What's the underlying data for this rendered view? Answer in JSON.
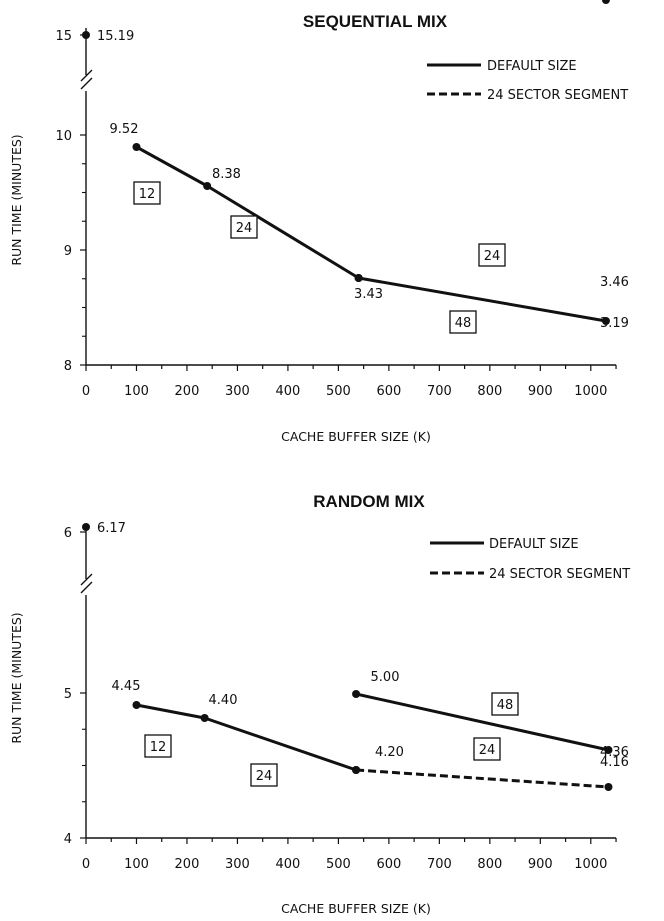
{
  "chart_data": [
    {
      "type": "line",
      "title": "SEQUENTIAL MIX",
      "xlabel": "CACHE BUFFER SIZE (K)",
      "ylabel": "RUN TIME (MINUTES)",
      "xlim": [
        0,
        1050
      ],
      "x_ticks": [
        "0",
        "100",
        "200",
        "300",
        "400",
        "500",
        "600",
        "700",
        "800",
        "900",
        "1000"
      ],
      "y_ticks": [
        "8",
        "9",
        "10",
        "15"
      ],
      "y_axis_break": true,
      "legend": {
        "position": "top-right",
        "entries": [
          "DEFAULT SIZE",
          "24 SECTOR SEGMENT"
        ]
      },
      "series": [
        {
          "name": "DEFAULT SIZE",
          "style": "solid",
          "points": [
            {
              "x": 0,
              "y": 15.19,
              "label": "15.19"
            },
            {
              "x": 100,
              "y": 9.52,
              "label": "9.52"
            },
            {
              "x": 240,
              "y": 8.38,
              "label": "8.38"
            },
            {
              "x": 540,
              "y": 3.43,
              "label": "3.43"
            },
            {
              "x": 1030,
              "y": 3.19,
              "label": "3.19"
            }
          ]
        },
        {
          "name": "24 SECTOR SEGMENT",
          "style": "dashed",
          "points": [
            {
              "x": 540,
              "y": 3.43
            },
            {
              "x": 1030,
              "y": 3.46,
              "label": "3.46"
            }
          ]
        }
      ],
      "annotations": [
        "12",
        "24",
        "24",
        "48"
      ]
    },
    {
      "type": "line",
      "title": "RANDOM MIX",
      "xlabel": "CACHE BUFFER SIZE (K)",
      "ylabel": "RUN TIME (MINUTES)",
      "xlim": [
        0,
        1050
      ],
      "x_ticks": [
        "0",
        "100",
        "200",
        "300",
        "400",
        "500",
        "600",
        "700",
        "800",
        "900",
        "1000"
      ],
      "y_ticks": [
        "4",
        "5",
        "6"
      ],
      "y_axis_break": true,
      "legend": {
        "position": "top-right",
        "entries": [
          "DEFAULT SIZE",
          "24 SECTOR SEGMENT"
        ]
      },
      "series": [
        {
          "name": "DEFAULT SIZE",
          "style": "solid",
          "points": [
            {
              "x": 0,
              "y": 6.17,
              "label": "6.17"
            },
            {
              "x": 100,
              "y": 4.45,
              "label": "4.45"
            },
            {
              "x": 235,
              "y": 4.4,
              "label": "4.40"
            },
            {
              "x": 535,
              "y": 4.2,
              "label": "4.20"
            }
          ]
        },
        {
          "name": "DEFAULT SIZE",
          "style": "solid",
          "points": [
            {
              "x": 535,
              "y": 5.0,
              "label": "5.00"
            },
            {
              "x": 1035,
              "y": 4.36,
              "label": "4.36"
            }
          ]
        },
        {
          "name": "24 SECTOR SEGMENT",
          "style": "dashed",
          "points": [
            {
              "x": 535,
              "y": 4.2
            },
            {
              "x": 1035,
              "y": 4.16,
              "label": "4.16"
            }
          ]
        }
      ],
      "annotations": [
        "12",
        "24",
        "48",
        "24"
      ]
    }
  ]
}
